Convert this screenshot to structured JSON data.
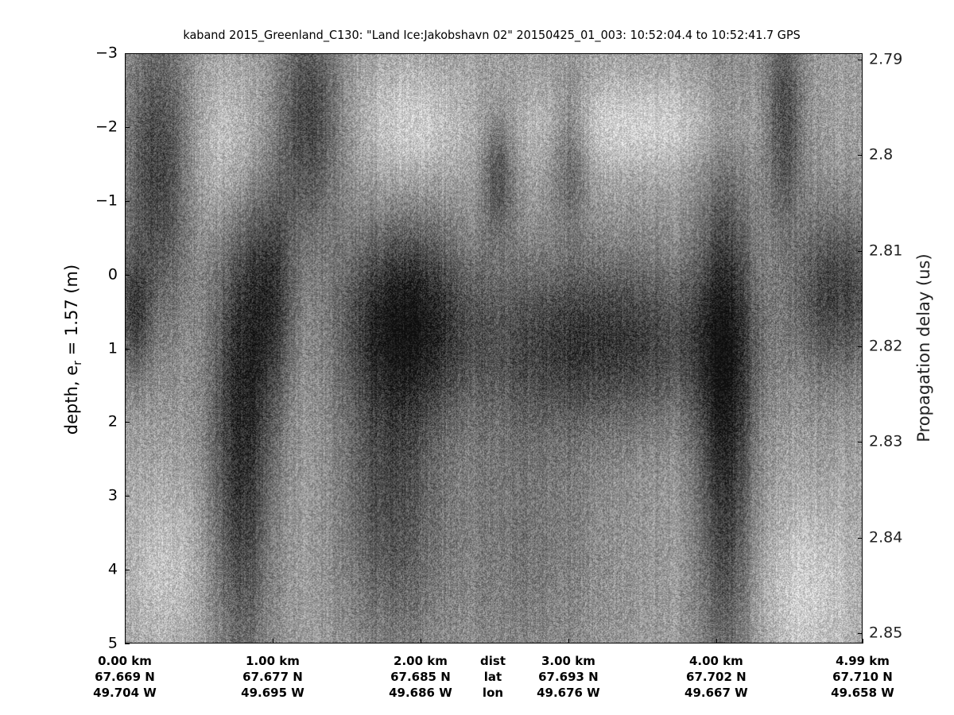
{
  "chart_data": {
    "type": "heatmap",
    "title": "kaband 2015_Greenland_C130: \"Land Ice:Jakobshavn 02\"  20150425_01_003: 10:52:04.4 to 10:52:41.7 GPS",
    "ylabel_left": "depth, e",
    "ylabel_left_sub": "r",
    "ylabel_left_rest": " = 1.57 (m)",
    "ylabel_right": "Propagation delay (us)",
    "ylim_left": [
      -3,
      5
    ],
    "yticks_left": [
      "-3",
      "-2",
      "-1",
      "0",
      "1",
      "2",
      "3",
      "4",
      "5"
    ],
    "ylim_right": [
      2.79,
      2.85
    ],
    "yticks_right": [
      "2.79",
      "2.8",
      "2.81",
      "2.82",
      "2.83",
      "2.84",
      "2.85"
    ],
    "colormap": "gray",
    "x_axis_rows": [
      {
        "label": "dist",
        "values": [
          "0.00 km",
          "1.00 km",
          "2.00 km",
          "3.00 km",
          "4.00 km",
          "4.99 km"
        ]
      },
      {
        "label": "lat",
        "values": [
          "67.669 N",
          "67.677 N",
          "67.685 N",
          "67.693 N",
          "67.702 N",
          "67.710 N"
        ]
      },
      {
        "label": "lon",
        "values": [
          "49.704 W",
          "49.695 W",
          "49.686 W",
          "49.676 W",
          "49.667 W",
          "49.658 W"
        ]
      }
    ],
    "x_tick_km": [
      0,
      1,
      2,
      3,
      4,
      4.99
    ],
    "x_range_km": [
      0,
      4.99
    ]
  }
}
